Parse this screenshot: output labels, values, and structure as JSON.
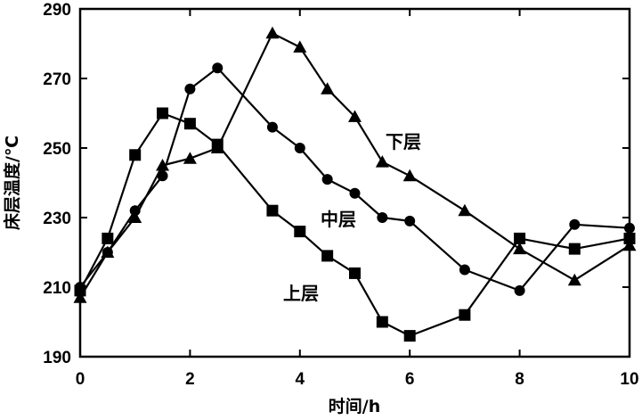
{
  "chart_data": {
    "type": "line",
    "xlabel": "时间/h",
    "ylabel": "床层温度/℃",
    "xlim": [
      0,
      10
    ],
    "ylim": [
      190,
      290
    ],
    "xticks": [
      0,
      2,
      4,
      6,
      8,
      10
    ],
    "yticks": [
      190,
      210,
      230,
      250,
      270,
      290
    ],
    "grid": false,
    "series": [
      {
        "name": "上层",
        "marker": "square",
        "x": [
          0,
          0.5,
          1,
          1.5,
          2,
          2.5,
          3.5,
          4,
          4.5,
          5,
          5.5,
          6,
          7,
          8,
          9,
          10
        ],
        "y": [
          209,
          224,
          248,
          260,
          257,
          251,
          232,
          226,
          219,
          214,
          200,
          196,
          202,
          224,
          221,
          224
        ]
      },
      {
        "name": "中层",
        "marker": "circle",
        "x": [
          0,
          0.5,
          1,
          1.5,
          2,
          2.5,
          3.5,
          4,
          4.5,
          5,
          5.5,
          6,
          7,
          8,
          9,
          10
        ],
        "y": [
          210,
          220,
          232,
          242,
          267,
          273,
          256,
          250,
          241,
          237,
          230,
          229,
          215,
          209,
          228,
          227
        ]
      },
      {
        "name": "下层",
        "marker": "triangle",
        "x": [
          0,
          0.5,
          1,
          1.5,
          2,
          2.5,
          3.5,
          4,
          4.5,
          5,
          5.5,
          6,
          7,
          8,
          9,
          10
        ],
        "y": [
          207,
          220,
          230,
          245,
          247,
          250,
          283,
          279,
          267,
          259,
          246,
          242,
          232,
          221,
          212,
          222
        ]
      }
    ]
  }
}
